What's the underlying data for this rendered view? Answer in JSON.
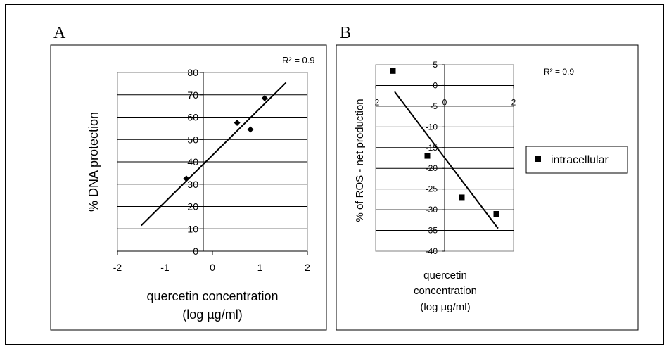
{
  "panel_a": {
    "letter": "A"
  },
  "panel_b": {
    "letter": "B"
  },
  "chart_data": [
    {
      "type": "scatter",
      "panel": "A",
      "xlabel": [
        "quercetin concentration",
        "(log µg/ml)"
      ],
      "ylabel": "% DNA protection",
      "xlim": [
        -2,
        2
      ],
      "ylim": [
        0,
        80
      ],
      "xticks": [
        "-2",
        "-1",
        "0",
        "1",
        "2"
      ],
      "yticks": [
        "0",
        "10",
        "20",
        "30",
        "40",
        "50",
        "60",
        "70",
        "80"
      ],
      "grid": "horizontal",
      "annotation": "R² = 0.9",
      "points": [
        {
          "x": -0.55,
          "y": 32.5
        },
        {
          "x": 0.52,
          "y": 57.5
        },
        {
          "x": 0.8,
          "y": 54.5
        },
        {
          "x": 1.1,
          "y": 68.5
        }
      ],
      "trendline": {
        "x": [
          -1.5,
          1.55
        ],
        "y": [
          11.5,
          75.5
        ]
      },
      "marker": "diamond",
      "color": "#000000"
    },
    {
      "type": "scatter",
      "panel": "B",
      "xlabel": [
        "quercetin",
        "concentration",
        "(log µg/ml)"
      ],
      "ylabel": "% of ROS - net production",
      "xlim": [
        -2,
        2
      ],
      "ylim": [
        -40,
        5
      ],
      "xticks": [
        "-2",
        "0",
        "2"
      ],
      "yticks": [
        "5",
        "0",
        "-5",
        "-10",
        "-15",
        "-20",
        "-25",
        "-30",
        "-35",
        "-40"
      ],
      "grid": "horizontal",
      "annotation": "R² = 0.9",
      "legend": {
        "position": "right",
        "entries": [
          "intracellular"
        ]
      },
      "series": [
        {
          "name": "intracellular",
          "points": [
            {
              "x": -1.5,
              "y": 3.5
            },
            {
              "x": -0.5,
              "y": -17
            },
            {
              "x": 0.5,
              "y": -27
            },
            {
              "x": 1.5,
              "y": -31
            }
          ]
        }
      ],
      "trendline": {
        "x": [
          -1.45,
          1.55
        ],
        "y": [
          -1.5,
          -34.5
        ]
      },
      "marker": "square",
      "color": "#000000"
    }
  ]
}
